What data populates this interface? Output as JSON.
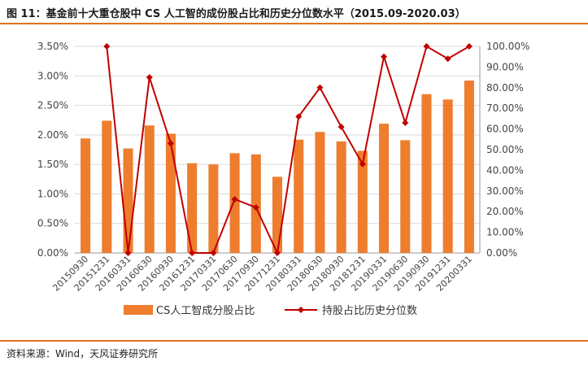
{
  "header": {
    "title": "图 11：基金前十大重仓股中 CS 人工智的成份股占比和历史分位数水平（2015.09-2020.03）"
  },
  "footer": {
    "source": "资料来源：Wind，天风证券研究所"
  },
  "colors": {
    "bar": "#ee7d2e",
    "line": "#c00000",
    "accent_rule": "#e0731f"
  },
  "chart_data": {
    "type": "bar",
    "categories": [
      "20150930",
      "20151231",
      "20160331",
      "20160630",
      "20160930",
      "20161231",
      "20170331",
      "20170630",
      "20170930",
      "20171231",
      "20180331",
      "20180630",
      "20180930",
      "20181231",
      "20190331",
      "20190630",
      "20190930",
      "20191231",
      "20200331"
    ],
    "series": [
      {
        "name": "CS人工智成分股占比",
        "type": "bar",
        "axis": "left",
        "values": [
          1.94,
          2.24,
          1.77,
          2.16,
          2.02,
          1.52,
          1.5,
          1.69,
          1.67,
          1.29,
          1.92,
          2.05,
          1.89,
          1.73,
          2.19,
          1.91,
          2.69,
          2.6,
          2.92
        ]
      },
      {
        "name": "持股占比历史分位数",
        "type": "line",
        "axis": "right",
        "values": [
          null,
          100,
          0,
          85,
          53,
          0,
          0,
          26,
          22,
          0,
          66,
          80,
          61,
          43,
          95,
          63,
          100,
          94,
          100
        ]
      }
    ],
    "ylim": [
      0,
      3.5
    ],
    "yticks": [
      "0.00%",
      "0.50%",
      "1.00%",
      "1.50%",
      "2.00%",
      "2.50%",
      "3.00%",
      "3.50%"
    ],
    "y2lim": [
      0,
      100
    ],
    "y2ticks": [
      "0.00%",
      "10.00%",
      "20.00%",
      "30.00%",
      "40.00%",
      "50.00%",
      "60.00%",
      "70.00%",
      "80.00%",
      "90.00%",
      "100.00%"
    ],
    "grid": true,
    "legend": "bottom"
  }
}
